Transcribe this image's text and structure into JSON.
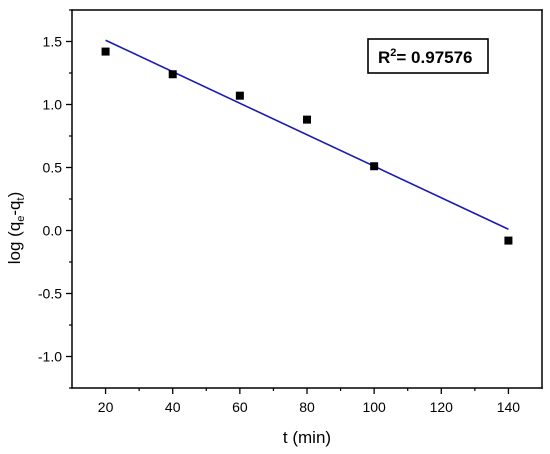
{
  "chart_data": {
    "type": "scatter",
    "xlabel": "t (min)",
    "ylabel": {
      "prefix": "log (q",
      "sub1": "e",
      "mid": "-q",
      "sub2": "t",
      "suffix": ")"
    },
    "xlim": [
      10,
      150
    ],
    "ylim": [
      -1.25,
      1.75
    ],
    "xticks": [
      20,
      40,
      60,
      80,
      100,
      120,
      140
    ],
    "yticks": [
      -1.0,
      -0.5,
      0.0,
      0.5,
      1.0,
      1.5
    ],
    "ytick_labels": [
      "-1.0",
      "-0.5",
      "0.0",
      "0.5",
      "1.0",
      "1.5"
    ],
    "grid": false,
    "series": [
      {
        "x": [
          20,
          40,
          60,
          80,
          100,
          140
        ],
        "y": [
          1.42,
          1.24,
          1.07,
          0.88,
          0.51,
          -0.08
        ],
        "marker": "square",
        "color": "#000000"
      }
    ],
    "fit_line": {
      "x": [
        20,
        140
      ],
      "y": [
        1.51,
        0.01
      ],
      "color": "#1a1ab4"
    },
    "annotation": {
      "prefix": "R",
      "sup": "2",
      "text": "= 0.97576"
    }
  }
}
